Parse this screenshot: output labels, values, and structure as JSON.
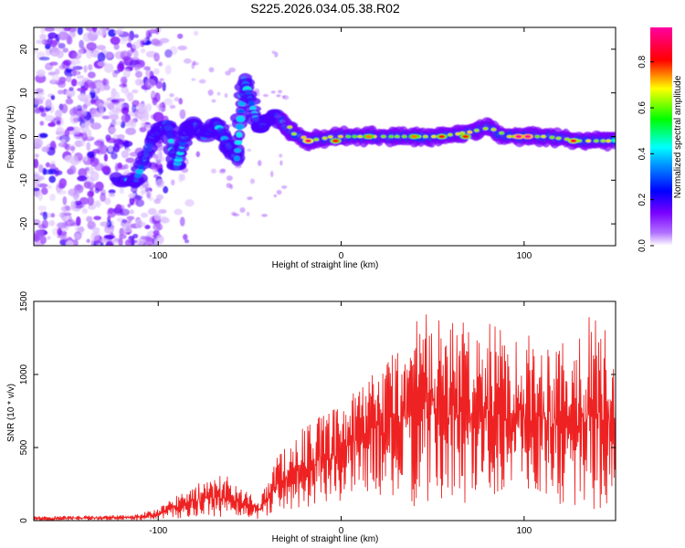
{
  "figure": {
    "title": "S225.2026.034.05.38.R02"
  },
  "chart_data": [
    {
      "type": "heatmap",
      "xlabel": "Height of straight line (km)",
      "ylabel": "Frequency (Hz)",
      "xlim": [
        -168,
        150
      ],
      "ylim": [
        -25,
        25
      ],
      "xticks": [
        -100,
        0,
        100
      ],
      "yticks": [
        -20,
        -10,
        0,
        10,
        20
      ],
      "xtick_labels": [
        "-100",
        "0",
        "100"
      ],
      "ytick_labels": [
        "-20",
        "-10",
        "0",
        "10",
        "20"
      ],
      "colorbar": {
        "label": "Normalized spectral amplitude",
        "range": [
          0,
          0.95
        ],
        "ticks": [
          0.0,
          0.2,
          0.4,
          0.6,
          0.8
        ],
        "tick_labels": [
          "0.0",
          "0.2",
          "0.4",
          "0.6",
          "0.8"
        ],
        "colormap": [
          "#ffffff",
          "#7a00ff",
          "#0000ff",
          "#00ffff",
          "#00ff00",
          "#ffff00",
          "#ff0000",
          "#ff00a0"
        ]
      },
      "signal_track": [
        {
          "x": -122,
          "y": -10
        },
        {
          "x": -112,
          "y": -10
        },
        {
          "x": -103,
          "y": 0
        },
        {
          "x": -95,
          "y": 3
        },
        {
          "x": -90,
          "y": -7
        },
        {
          "x": -85,
          "y": 1
        },
        {
          "x": -80,
          "y": 3
        },
        {
          "x": -75,
          "y": 0
        },
        {
          "x": -68,
          "y": 3
        },
        {
          "x": -62,
          "y": -2
        },
        {
          "x": -57,
          "y": -5
        },
        {
          "x": -53,
          "y": 13
        },
        {
          "x": -45,
          "y": 2
        },
        {
          "x": -40,
          "y": 4
        },
        {
          "x": -35,
          "y": 5
        },
        {
          "x": -28,
          "y": 1
        },
        {
          "x": -18,
          "y": -1
        },
        {
          "x": -5,
          "y": 0
        },
        {
          "x": 20,
          "y": 0
        },
        {
          "x": 50,
          "y": 0
        },
        {
          "x": 70,
          "y": 1
        },
        {
          "x": 80,
          "y": 2
        },
        {
          "x": 90,
          "y": 0
        },
        {
          "x": 110,
          "y": 0
        },
        {
          "x": 130,
          "y": -1
        },
        {
          "x": 150,
          "y": -1
        }
      ],
      "hotspots": [
        {
          "x": -18,
          "y": -1,
          "amp": 0.9
        },
        {
          "x": -3,
          "y": -1,
          "amp": 0.8
        },
        {
          "x": 15,
          "y": 0,
          "amp": 0.75
        },
        {
          "x": 40,
          "y": 0,
          "amp": 0.75
        },
        {
          "x": 55,
          "y": 0,
          "amp": 0.8
        },
        {
          "x": 68,
          "y": 0,
          "amp": 0.8
        },
        {
          "x": 97,
          "y": 0,
          "amp": 0.95
        },
        {
          "x": 102,
          "y": 0,
          "amp": 0.95
        },
        {
          "x": 127,
          "y": -1,
          "amp": 0.85
        }
      ]
    },
    {
      "type": "line",
      "xlabel": "Height of straight line (km)",
      "ylabel": "SNR (10 * v/v)",
      "xlim": [
        -168,
        150
      ],
      "ylim": [
        0,
        1500
      ],
      "xticks": [
        -100,
        0,
        100
      ],
      "yticks": [
        0,
        500,
        1000,
        1500
      ],
      "xtick_labels": [
        "-100",
        "0",
        "100"
      ],
      "ytick_labels": [
        "0",
        "500",
        "1000",
        "1500"
      ],
      "line_color": "#ee2222",
      "series": [
        {
          "envelope": [
            {
              "x": -168,
              "min": 0,
              "max": 30
            },
            {
              "x": -140,
              "min": 0,
              "max": 35
            },
            {
              "x": -115,
              "min": 0,
              "max": 40
            },
            {
              "x": -100,
              "min": 5,
              "max": 80
            },
            {
              "x": -90,
              "min": 10,
              "max": 180
            },
            {
              "x": -80,
              "min": 20,
              "max": 250
            },
            {
              "x": -70,
              "min": 20,
              "max": 280
            },
            {
              "x": -63,
              "min": 20,
              "max": 330
            },
            {
              "x": -55,
              "min": 20,
              "max": 230
            },
            {
              "x": -45,
              "min": 10,
              "max": 140
            },
            {
              "x": -40,
              "min": 30,
              "max": 300
            },
            {
              "x": -35,
              "min": 60,
              "max": 450
            },
            {
              "x": -25,
              "min": 80,
              "max": 600
            },
            {
              "x": -15,
              "min": 100,
              "max": 700
            },
            {
              "x": -5,
              "min": 120,
              "max": 750
            },
            {
              "x": 5,
              "min": 150,
              "max": 850
            },
            {
              "x": 15,
              "min": 200,
              "max": 1000
            },
            {
              "x": 25,
              "min": 150,
              "max": 1150
            },
            {
              "x": 35,
              "min": 100,
              "max": 1250
            },
            {
              "x": 42,
              "min": 80,
              "max": 1470
            },
            {
              "x": 55,
              "min": 100,
              "max": 1400
            },
            {
              "x": 68,
              "min": 120,
              "max": 1350
            },
            {
              "x": 80,
              "min": 150,
              "max": 1350
            },
            {
              "x": 95,
              "min": 200,
              "max": 1300
            },
            {
              "x": 110,
              "min": 150,
              "max": 1250
            },
            {
              "x": 125,
              "min": 80,
              "max": 1300
            },
            {
              "x": 140,
              "min": 30,
              "max": 1450
            },
            {
              "x": 150,
              "min": 200,
              "max": 1100
            }
          ]
        }
      ]
    }
  ]
}
